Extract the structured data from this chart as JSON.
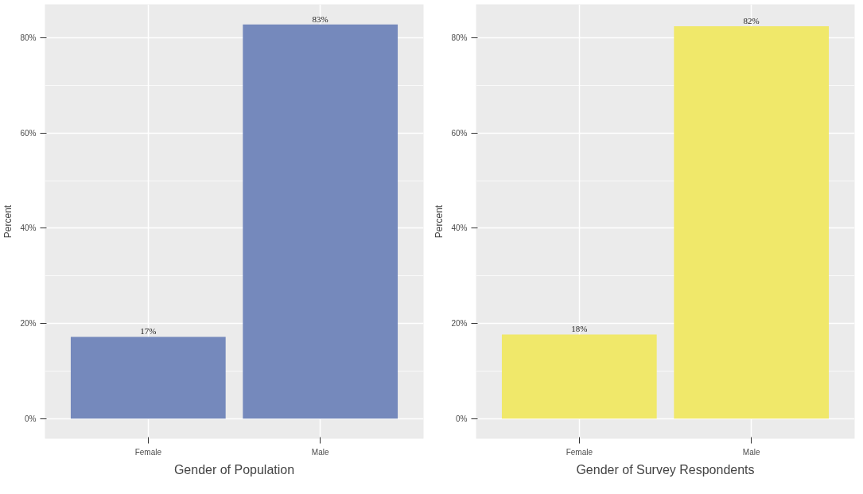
{
  "chart_data": [
    {
      "type": "bar",
      "xlabel": "Gender of Population",
      "ylabel": "Percent",
      "categories": [
        "Female",
        "Male"
      ],
      "values": [
        17.2,
        82.8
      ],
      "value_labels": [
        "17%",
        "83%"
      ],
      "color": "#7589bc",
      "ylim": [
        -4.2,
        87
      ],
      "yticks": [
        {
          "value": 0,
          "label": "0%"
        },
        {
          "value": 20,
          "label": "20%"
        },
        {
          "value": 40,
          "label": "40%"
        },
        {
          "value": 60,
          "label": "60%"
        },
        {
          "value": 80,
          "label": "80%"
        }
      ],
      "grid": true
    },
    {
      "type": "bar",
      "xlabel": "Gender of Survey Respondents",
      "ylabel": "Percent",
      "categories": [
        "Female",
        "Male"
      ],
      "values": [
        17.7,
        82.4
      ],
      "value_labels": [
        "18%",
        "82%"
      ],
      "color": "#f0e86a",
      "ylim": [
        -4.2,
        87
      ],
      "yticks": [
        {
          "value": 0,
          "label": "0%"
        },
        {
          "value": 20,
          "label": "20%"
        },
        {
          "value": 40,
          "label": "40%"
        },
        {
          "value": 60,
          "label": "60%"
        },
        {
          "value": 80,
          "label": "80%"
        }
      ],
      "grid": true
    }
  ]
}
